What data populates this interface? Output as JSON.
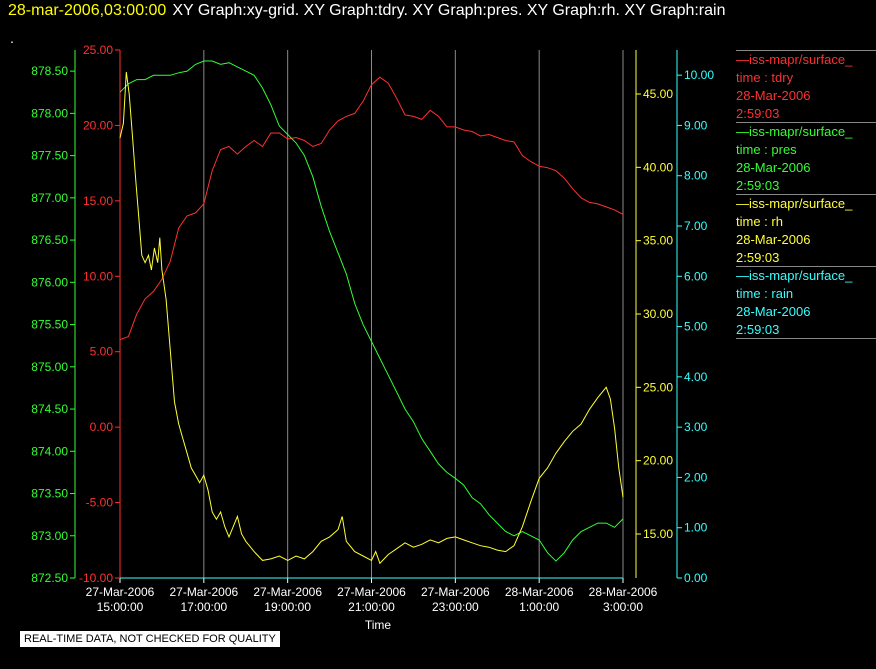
{
  "header": {
    "timestamp": "28-mar-2006,03:00:00",
    "titles": "XY Graph:xy-grid.  XY Graph:tdry.  XY Graph:pres.  XY Graph:rh.  XY Graph:rain",
    "dot": "."
  },
  "footer_note": "REAL-TIME DATA, NOT CHECKED FOR QUALITY",
  "legend": [
    {
      "name": "—iss-mapr/surface_",
      "var": "time : tdry",
      "date": "28-Mar-2006",
      "time": "2:59:03",
      "color": "#ff3030"
    },
    {
      "name": "—iss-mapr/surface_",
      "var": "time : pres",
      "date": "28-Mar-2006",
      "time": "2:59:03",
      "color": "#33ff33"
    },
    {
      "name": "—iss-mapr/surface_",
      "var": "time : rh",
      "date": "28-Mar-2006",
      "time": "2:59:03",
      "color": "#ffff33"
    },
    {
      "name": "—iss-mapr/surface_",
      "var": "time : rain",
      "date": "28-Mar-2006",
      "time": "2:59:03",
      "color": "#33ffff"
    }
  ],
  "chart_data": {
    "type": "line",
    "xlabel": "Time",
    "x_ticks": [
      {
        "l1": "27-Mar-2006",
        "l2": "15:00:00",
        "h": 15
      },
      {
        "l1": "27-Mar-2006",
        "l2": "17:00:00",
        "h": 17
      },
      {
        "l1": "27-Mar-2006",
        "l2": "19:00:00",
        "h": 19
      },
      {
        "l1": "27-Mar-2006",
        "l2": "21:00:00",
        "h": 21
      },
      {
        "l1": "27-Mar-2006",
        "l2": "23:00:00",
        "h": 23
      },
      {
        "l1": "28-Mar-2006",
        "l2": "1:00:00",
        "h": 25
      },
      {
        "l1": "28-Mar-2006",
        "l2": "3:00:00",
        "h": 27
      }
    ],
    "xlim_hours": [
      15,
      27
    ],
    "grid": true,
    "axes": {
      "pres": {
        "color": "#33ff33",
        "range": [
          872.5,
          878.75
        ],
        "ticks": [
          "872.50",
          "873.00",
          "873.50",
          "874.00",
          "874.50",
          "875.00",
          "875.50",
          "876.00",
          "876.50",
          "877.00",
          "877.50",
          "878.00",
          "878.50"
        ]
      },
      "tdry": {
        "color": "#ff3030",
        "range": [
          -10,
          25
        ],
        "ticks": [
          "-10.00",
          "-5.00",
          "0.00",
          "5.00",
          "10.00",
          "15.00",
          "20.00",
          "25.00"
        ]
      },
      "rh": {
        "color": "#ffff33",
        "range": [
          12,
          48
        ],
        "ticks": [
          "15.00",
          "20.00",
          "25.00",
          "30.00",
          "35.00",
          "40.00",
          "45.00"
        ]
      },
      "rain": {
        "color": "#33ffff",
        "range": [
          0,
          10.5
        ],
        "ticks": [
          "0.00",
          "1.00",
          "2.00",
          "3.00",
          "4.00",
          "5.00",
          "6.00",
          "7.00",
          "8.00",
          "9.00",
          "10.00"
        ]
      }
    },
    "series": [
      {
        "name": "tdry",
        "axis": "tdry",
        "color": "#ff3030",
        "points": [
          [
            15.0,
            5.8
          ],
          [
            15.2,
            6.0
          ],
          [
            15.4,
            7.5
          ],
          [
            15.6,
            8.5
          ],
          [
            15.8,
            9.0
          ],
          [
            16.0,
            9.8
          ],
          [
            16.2,
            11.0
          ],
          [
            16.4,
            13.2
          ],
          [
            16.6,
            14.0
          ],
          [
            16.8,
            14.2
          ],
          [
            17.0,
            14.8
          ],
          [
            17.2,
            17.0
          ],
          [
            17.4,
            18.4
          ],
          [
            17.6,
            18.6
          ],
          [
            17.8,
            18.1
          ],
          [
            18.0,
            18.6
          ],
          [
            18.2,
            19.0
          ],
          [
            18.4,
            18.6
          ],
          [
            18.6,
            19.5
          ],
          [
            18.8,
            19.5
          ],
          [
            19.0,
            19.1
          ],
          [
            19.2,
            19.2
          ],
          [
            19.4,
            19.0
          ],
          [
            19.6,
            18.6
          ],
          [
            19.8,
            18.8
          ],
          [
            20.0,
            19.7
          ],
          [
            20.2,
            20.3
          ],
          [
            20.4,
            20.6
          ],
          [
            20.6,
            20.8
          ],
          [
            20.8,
            21.6
          ],
          [
            21.0,
            22.7
          ],
          [
            21.2,
            23.2
          ],
          [
            21.4,
            22.8
          ],
          [
            21.6,
            21.8
          ],
          [
            21.8,
            20.7
          ],
          [
            22.0,
            20.6
          ],
          [
            22.2,
            20.4
          ],
          [
            22.4,
            21.0
          ],
          [
            22.6,
            20.6
          ],
          [
            22.8,
            19.9
          ],
          [
            23.0,
            19.9
          ],
          [
            23.2,
            19.7
          ],
          [
            23.4,
            19.6
          ],
          [
            23.6,
            19.3
          ],
          [
            23.8,
            19.4
          ],
          [
            24.0,
            19.2
          ],
          [
            24.2,
            19.0
          ],
          [
            24.4,
            18.9
          ],
          [
            24.6,
            18.0
          ],
          [
            24.8,
            17.6
          ],
          [
            25.0,
            17.3
          ],
          [
            25.2,
            17.2
          ],
          [
            25.4,
            17.0
          ],
          [
            25.6,
            16.5
          ],
          [
            25.8,
            15.8
          ],
          [
            26.0,
            15.2
          ],
          [
            26.2,
            14.9
          ],
          [
            26.4,
            14.8
          ],
          [
            26.6,
            14.6
          ],
          [
            26.8,
            14.4
          ],
          [
            27.0,
            14.1
          ]
        ]
      },
      {
        "name": "pres",
        "axis": "pres",
        "color": "#33ff33",
        "points": [
          [
            15.0,
            878.25
          ],
          [
            15.2,
            878.35
          ],
          [
            15.4,
            878.4
          ],
          [
            15.6,
            878.4
          ],
          [
            15.8,
            878.45
          ],
          [
            16.0,
            878.45
          ],
          [
            16.2,
            878.45
          ],
          [
            16.4,
            878.48
          ],
          [
            16.6,
            878.5
          ],
          [
            16.8,
            878.58
          ],
          [
            17.0,
            878.62
          ],
          [
            17.2,
            878.62
          ],
          [
            17.4,
            878.58
          ],
          [
            17.6,
            878.6
          ],
          [
            17.8,
            878.55
          ],
          [
            18.0,
            878.5
          ],
          [
            18.2,
            878.45
          ],
          [
            18.4,
            878.3
          ],
          [
            18.6,
            878.1
          ],
          [
            18.8,
            877.85
          ],
          [
            19.0,
            877.75
          ],
          [
            19.2,
            877.65
          ],
          [
            19.4,
            877.5
          ],
          [
            19.6,
            877.25
          ],
          [
            19.8,
            876.9
          ],
          [
            20.0,
            876.6
          ],
          [
            20.2,
            876.35
          ],
          [
            20.4,
            876.1
          ],
          [
            20.6,
            875.75
          ],
          [
            20.8,
            875.5
          ],
          [
            21.0,
            875.3
          ],
          [
            21.2,
            875.1
          ],
          [
            21.4,
            874.9
          ],
          [
            21.6,
            874.7
          ],
          [
            21.8,
            874.5
          ],
          [
            22.0,
            874.35
          ],
          [
            22.2,
            874.15
          ],
          [
            22.4,
            874.0
          ],
          [
            22.6,
            873.85
          ],
          [
            22.8,
            873.75
          ],
          [
            23.0,
            873.68
          ],
          [
            23.2,
            873.6
          ],
          [
            23.4,
            873.45
          ],
          [
            23.6,
            873.38
          ],
          [
            23.8,
            873.25
          ],
          [
            24.0,
            873.15
          ],
          [
            24.2,
            873.05
          ],
          [
            24.4,
            873.0
          ],
          [
            24.6,
            873.05
          ],
          [
            24.8,
            873.0
          ],
          [
            25.0,
            872.95
          ],
          [
            25.2,
            872.8
          ],
          [
            25.4,
            872.7
          ],
          [
            25.6,
            872.8
          ],
          [
            25.8,
            872.95
          ],
          [
            26.0,
            873.05
          ],
          [
            26.2,
            873.1
          ],
          [
            26.4,
            873.15
          ],
          [
            26.6,
            873.15
          ],
          [
            26.8,
            873.1
          ],
          [
            27.0,
            873.2
          ]
        ]
      },
      {
        "name": "rh",
        "axis": "rh",
        "color": "#ffff33",
        "points": [
          [
            15.0,
            42.0
          ],
          [
            15.08,
            43.0
          ],
          [
            15.15,
            46.5
          ],
          [
            15.22,
            45.0
          ],
          [
            15.3,
            42.0
          ],
          [
            15.38,
            39.0
          ],
          [
            15.45,
            36.5
          ],
          [
            15.52,
            34.0
          ],
          [
            15.6,
            33.5
          ],
          [
            15.68,
            34.0
          ],
          [
            15.75,
            33.0
          ],
          [
            15.82,
            34.5
          ],
          [
            15.9,
            33.5
          ],
          [
            15.95,
            35.2
          ],
          [
            16.0,
            33.0
          ],
          [
            16.1,
            31.0
          ],
          [
            16.2,
            27.5
          ],
          [
            16.3,
            24.0
          ],
          [
            16.4,
            22.5
          ],
          [
            16.5,
            21.5
          ],
          [
            16.6,
            20.5
          ],
          [
            16.7,
            19.5
          ],
          [
            16.8,
            19.0
          ],
          [
            16.9,
            18.5
          ],
          [
            17.0,
            19.0
          ],
          [
            17.1,
            18.0
          ],
          [
            17.2,
            16.5
          ],
          [
            17.3,
            16.0
          ],
          [
            17.4,
            16.5
          ],
          [
            17.5,
            15.5
          ],
          [
            17.6,
            14.8
          ],
          [
            17.7,
            15.5
          ],
          [
            17.8,
            16.2
          ],
          [
            17.9,
            15.0
          ],
          [
            18.0,
            14.5
          ],
          [
            18.2,
            13.8
          ],
          [
            18.4,
            13.2
          ],
          [
            18.6,
            13.3
          ],
          [
            18.8,
            13.5
          ],
          [
            19.0,
            13.2
          ],
          [
            19.2,
            13.5
          ],
          [
            19.4,
            13.3
          ],
          [
            19.6,
            13.8
          ],
          [
            19.8,
            14.5
          ],
          [
            20.0,
            14.8
          ],
          [
            20.2,
            15.3
          ],
          [
            20.3,
            16.2
          ],
          [
            20.4,
            14.5
          ],
          [
            20.6,
            13.8
          ],
          [
            20.8,
            13.5
          ],
          [
            21.0,
            13.2
          ],
          [
            21.1,
            13.8
          ],
          [
            21.2,
            13.0
          ],
          [
            21.4,
            13.6
          ],
          [
            21.6,
            14.0
          ],
          [
            21.8,
            14.4
          ],
          [
            22.0,
            14.1
          ],
          [
            22.2,
            14.3
          ],
          [
            22.4,
            14.6
          ],
          [
            22.6,
            14.4
          ],
          [
            22.8,
            14.7
          ],
          [
            23.0,
            14.8
          ],
          [
            23.2,
            14.6
          ],
          [
            23.4,
            14.4
          ],
          [
            23.6,
            14.2
          ],
          [
            23.8,
            14.1
          ],
          [
            24.0,
            13.9
          ],
          [
            24.2,
            13.8
          ],
          [
            24.4,
            14.2
          ],
          [
            24.6,
            15.5
          ],
          [
            24.8,
            17.2
          ],
          [
            25.0,
            18.8
          ],
          [
            25.2,
            19.5
          ],
          [
            25.4,
            20.5
          ],
          [
            25.6,
            21.3
          ],
          [
            25.8,
            22.0
          ],
          [
            26.0,
            22.5
          ],
          [
            26.2,
            23.5
          ],
          [
            26.4,
            24.3
          ],
          [
            26.6,
            25.0
          ],
          [
            26.7,
            24.2
          ],
          [
            26.8,
            22.2
          ],
          [
            26.9,
            19.5
          ],
          [
            27.0,
            17.5
          ]
        ]
      },
      {
        "name": "rain",
        "axis": "rain",
        "color": "#33ffff",
        "points": [
          [
            15.0,
            0.0
          ],
          [
            27.0,
            0.0
          ]
        ]
      }
    ]
  }
}
